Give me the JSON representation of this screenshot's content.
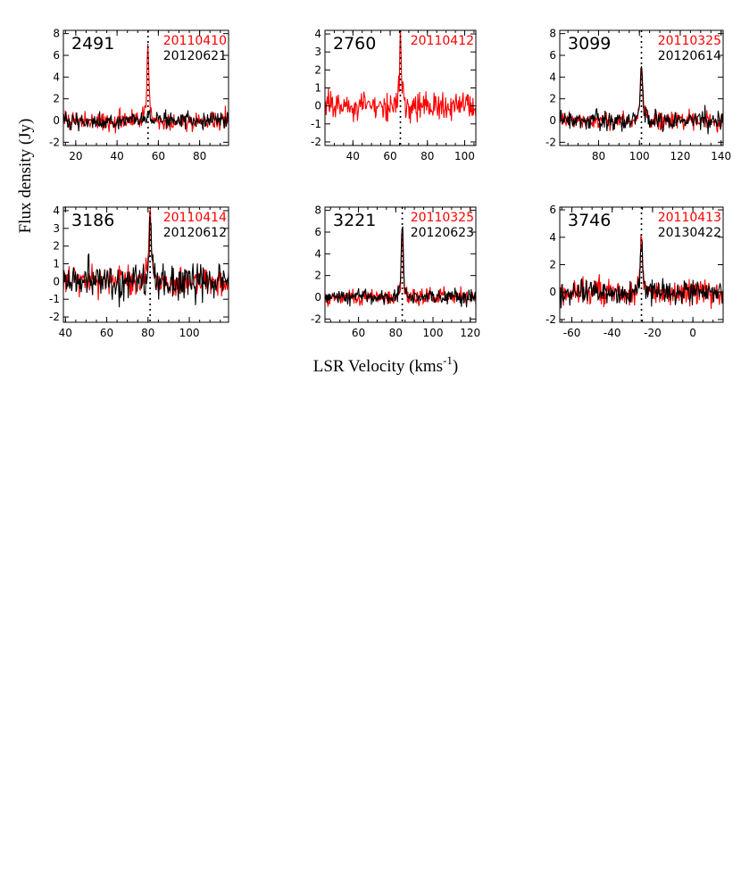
{
  "figure": {
    "ylabel": "Flux density (Jy)",
    "xlabel_main": "LSR Velocity (kms",
    "xlabel_sup": "-1",
    "xlabel_close": ")"
  },
  "colors": {
    "epoch1": "#ff0000",
    "epoch2": "#000000"
  },
  "chart_data": [
    {
      "type": "line",
      "source": "2491",
      "xlim": [
        14,
        94
      ],
      "ylim": [
        -2.3,
        8.3
      ],
      "xticks": [
        20,
        40,
        60,
        80
      ],
      "yticks": [
        -2,
        0,
        2,
        4,
        6,
        8
      ],
      "peak_velocity": 55,
      "series": [
        {
          "name": "20110410",
          "color": "#ff0000",
          "peak_flux": 5.3,
          "rms": 0.65
        },
        {
          "name": "20120621",
          "color": "#000000",
          "peak_flux": 0.8,
          "rms": 0.55
        }
      ]
    },
    {
      "type": "line",
      "source": "2760",
      "xlim": [
        25,
        106
      ],
      "ylim": [
        -2.2,
        4.2
      ],
      "xticks": [
        40,
        60,
        80,
        100
      ],
      "yticks": [
        -2,
        -1,
        0,
        1,
        2,
        3,
        4
      ],
      "peak_velocity": 65.5,
      "series": [
        {
          "name": "20110412",
          "color": "#ff0000",
          "peak_flux": 2.8,
          "rms": 0.6
        }
      ]
    },
    {
      "type": "line",
      "source": "3099",
      "xlim": [
        61,
        141
      ],
      "ylim": [
        -2.3,
        8.3
      ],
      "xticks": [
        80,
        100,
        120,
        140
      ],
      "yticks": [
        -2,
        0,
        2,
        4,
        6,
        8
      ],
      "peak_velocity": 101,
      "series": [
        {
          "name": "20110325",
          "color": "#ff0000",
          "peak_flux": 4.1,
          "rms": 0.6
        },
        {
          "name": "20120614",
          "color": "#000000",
          "peak_flux": 4.3,
          "rms": 0.65
        }
      ]
    },
    {
      "type": "line",
      "source": "3186",
      "xlim": [
        39,
        119
      ],
      "ylim": [
        -2.3,
        4.2
      ],
      "xticks": [
        40,
        60,
        80,
        100
      ],
      "yticks": [
        -2,
        -1,
        0,
        1,
        2,
        3,
        4
      ],
      "peak_velocity": 81,
      "series": [
        {
          "name": "20110414",
          "color": "#ff0000",
          "peak_flux": 3.2,
          "rms": 0.6
        },
        {
          "name": "20120612",
          "color": "#000000",
          "peak_flux": 3.0,
          "rms": 0.75
        }
      ]
    },
    {
      "type": "line",
      "source": "3221",
      "xlim": [
        42,
        123
      ],
      "ylim": [
        -2.3,
        8.3
      ],
      "xticks": [
        60,
        80,
        100,
        120
      ],
      "yticks": [
        -2,
        0,
        2,
        4,
        6,
        8
      ],
      "peak_velocity": 83.5,
      "series": [
        {
          "name": "20110325",
          "color": "#ff0000",
          "peak_flux": 4.7,
          "rms": 0.55
        },
        {
          "name": "20120623",
          "color": "#000000",
          "peak_flux": 5.6,
          "rms": 0.5
        }
      ]
    },
    {
      "type": "line",
      "source": "3746",
      "xlim": [
        -66,
        15
      ],
      "ylim": [
        -2.2,
        6.2
      ],
      "xticks": [
        -60,
        -40,
        -20,
        0
      ],
      "yticks": [
        -2,
        0,
        2,
        4,
        6
      ],
      "peak_velocity": -25.5,
      "series": [
        {
          "name": "20110413",
          "color": "#ff0000",
          "peak_flux": 3.5,
          "rms": 0.7
        },
        {
          "name": "20130422",
          "color": "#000000",
          "peak_flux": 2.8,
          "rms": 0.6
        }
      ]
    }
  ]
}
